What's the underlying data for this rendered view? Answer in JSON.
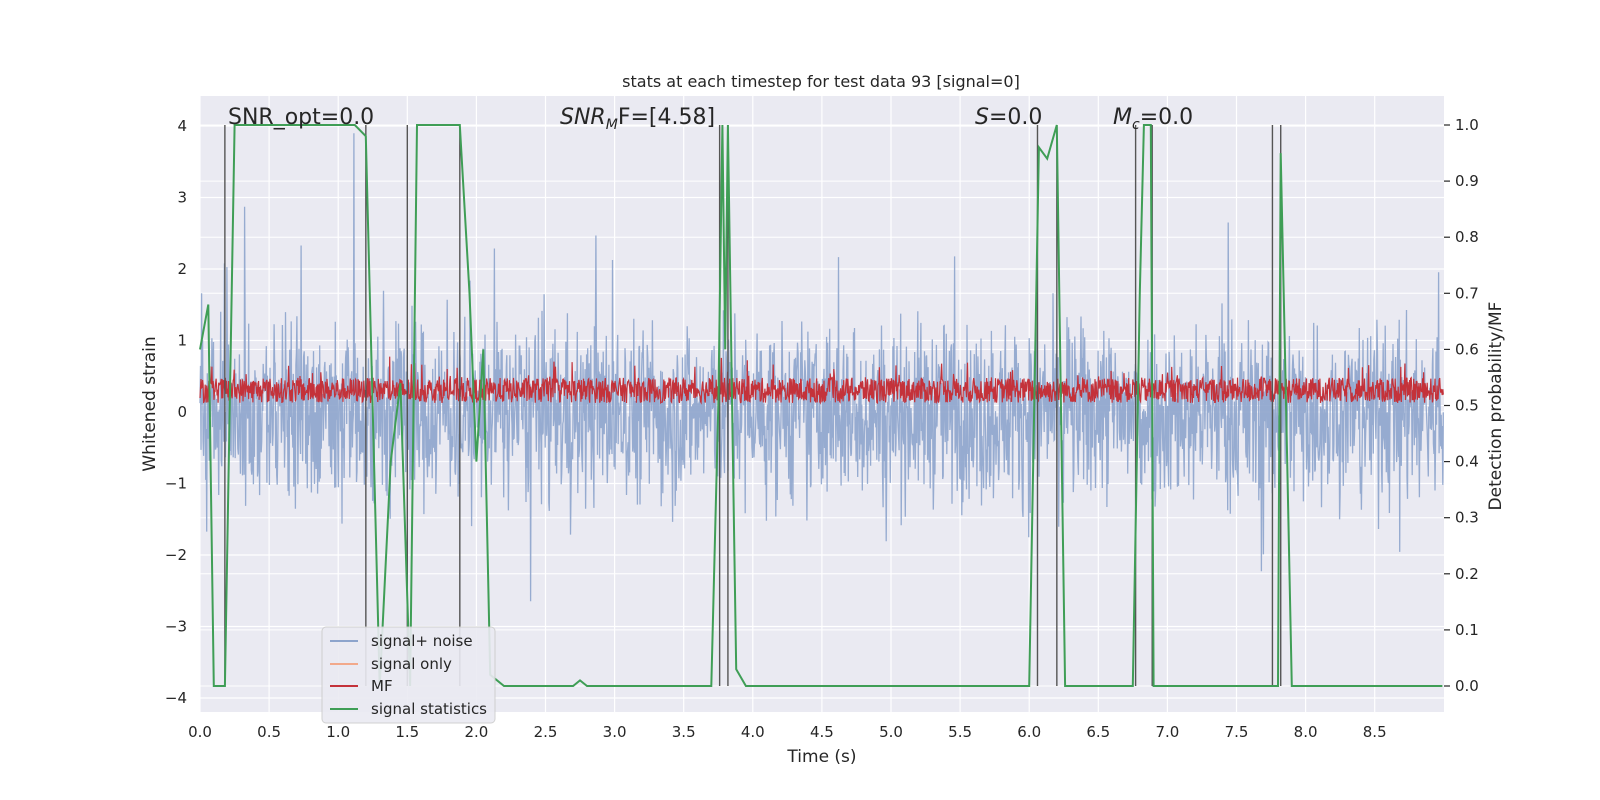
{
  "chart_data": {
    "type": "line",
    "title": "stats at each timestep for test data 93 [signal=0]",
    "xlabel": "Time (s)",
    "ylabel": "Whitened strain",
    "ylabel_right": "Detection probability/MF",
    "xlim": [
      0.0,
      9.0
    ],
    "ylim": [
      -4.3,
      4.4
    ],
    "ylim_right": [
      -0.047,
      1.047
    ],
    "grid": true,
    "xticks": [
      "0.0",
      "0.5",
      "1.0",
      "1.5",
      "2.0",
      "2.5",
      "3.0",
      "3.5",
      "4.0",
      "4.5",
      "5.0",
      "5.5",
      "6.0",
      "6.5",
      "7.0",
      "7.5",
      "8.0",
      "8.5"
    ],
    "yticks": [
      "4",
      "3",
      "2",
      "1",
      "0",
      "−1",
      "−2",
      "−3",
      "−4"
    ],
    "yticks_right": [
      "1.0",
      "0.9",
      "0.8",
      "0.7",
      "0.6",
      "0.5",
      "0.4",
      "0.3",
      "0.2",
      "0.1",
      "0.0"
    ],
    "annotations": {
      "snr_opt": "SNR_opt=0.0",
      "snr_mf_pre": "SNR",
      "snr_mf_sub": "M",
      "snr_mf_post": "F=[4.58]",
      "s_pre": "S",
      "s_post": "=0.0",
      "mc_pre": "M",
      "mc_sub": "c",
      "mc_post": "=0.0"
    },
    "legend": {
      "placement": "lower-left",
      "entries": [
        {
          "label": "signal+ noise",
          "color": "#8da4cc"
        },
        {
          "label": "signal only",
          "color": "#f2a98b"
        },
        {
          "label": "MF",
          "color": "#c4323a"
        },
        {
          "label": "signal statistics",
          "color": "#3f9e56"
        }
      ]
    },
    "series": [
      {
        "name": "signal statistics",
        "axis": "right",
        "color": "#3f9e56",
        "x": [
          0.0,
          0.06,
          0.1,
          0.18,
          0.25,
          0.5,
          1.0,
          1.12,
          1.2,
          1.3,
          1.38,
          1.45,
          1.52,
          1.57,
          1.88,
          1.95,
          2.0,
          2.05,
          2.1,
          2.2,
          2.5,
          2.7,
          2.75,
          2.8,
          3.0,
          3.5,
          3.7,
          3.75,
          3.78,
          3.8,
          3.82,
          3.85,
          3.88,
          3.95,
          4.5,
          5.5,
          6.0,
          6.07,
          6.13,
          6.2,
          6.26,
          6.5,
          6.75,
          6.8,
          6.83,
          6.88,
          6.9,
          6.95,
          7.5,
          7.8,
          7.82,
          7.85,
          7.9,
          8.0,
          8.5,
          8.99
        ],
        "y": [
          0.6,
          0.68,
          0.0,
          0.0,
          1.0,
          1.0,
          1.0,
          1.0,
          0.98,
          0.0,
          0.4,
          0.54,
          0.0,
          1.0,
          1.0,
          0.7,
          0.4,
          0.6,
          0.02,
          0.0,
          0.0,
          0.0,
          0.01,
          0.0,
          0.0,
          0.0,
          0.0,
          0.5,
          1.0,
          0.6,
          1.0,
          0.5,
          0.03,
          0.0,
          0.0,
          0.0,
          0.0,
          0.96,
          0.94,
          1.0,
          0.0,
          0.0,
          0.0,
          0.7,
          1.0,
          1.0,
          0.0,
          0.0,
          0.0,
          0.0,
          0.95,
          0.6,
          0.0,
          0.0,
          0.0,
          0.0
        ]
      },
      {
        "name": "signal+ noise",
        "axis": "left",
        "color": "#8da4cc",
        "description_values": "dense noise, amplitude mostly within [-3.5, 3.9]"
      },
      {
        "name": "MF",
        "axis": "right",
        "color": "#c4323a",
        "description_values": "dense trace between about 0.50 and 0.57"
      }
    ],
    "vlines_x": [
      0.18,
      1.2,
      1.5,
      1.88,
      3.76,
      3.82,
      6.06,
      6.2,
      6.77,
      6.89,
      7.76,
      7.82
    ]
  }
}
